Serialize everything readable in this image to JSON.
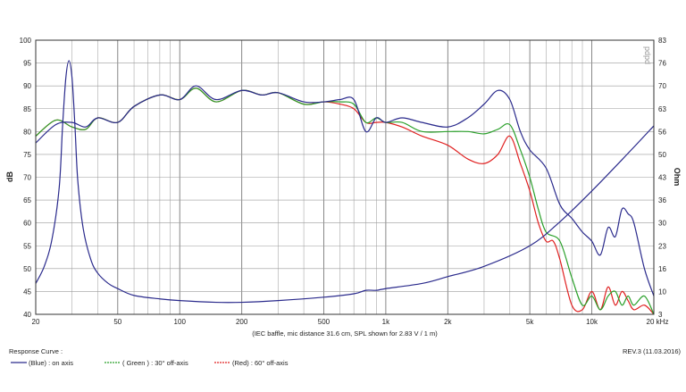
{
  "chart_data": {
    "type": "line",
    "x_scale": "log",
    "xlim": [
      20,
      20000
    ],
    "ylim_left": [
      40,
      100
    ],
    "ylim_right": [
      3,
      83
    ],
    "grid": true,
    "left_axis_label": "dB",
    "right_axis_label": "Ohm",
    "x_ticks": [
      "20",
      "50",
      "100",
      "200",
      "500",
      "1k",
      "2k",
      "5k",
      "10k",
      "20 kHz"
    ],
    "x_tick_values": [
      20,
      50,
      100,
      200,
      500,
      1000,
      2000,
      5000,
      10000,
      20000
    ],
    "y_ticks_left": [
      "40",
      "45",
      "50",
      "55",
      "60",
      "65",
      "70",
      "75",
      "80",
      "85",
      "90",
      "95",
      "100"
    ],
    "y_ticks_right": [
      "3",
      "10",
      "16",
      "23",
      "30",
      "36",
      "43",
      "50",
      "56",
      "63",
      "70",
      "76",
      "83"
    ],
    "caption": "(IEC baffle, mic distance 31.6 cm, SPL shown for 2.83 V / 1 m)",
    "watermark": "pdpd",
    "revision": "REV.3 (11.03.2016)",
    "legend_title": "Response Curve :",
    "legend": [
      {
        "label": "(Blue) : on axis",
        "color": "#2a2a8c"
      },
      {
        "label": "( Green ) : 30° off-axis",
        "color": "#2aa02a"
      },
      {
        "label": "(Red) : 60° off-axis",
        "color": "#e02020"
      }
    ],
    "series": [
      {
        "color": "#2a2a8c",
        "axis": "left",
        "x": [
          20,
          25,
          30,
          35,
          40,
          50,
          60,
          80,
          100,
          120,
          150,
          200,
          250,
          300,
          400,
          500,
          600,
          700,
          800,
          900,
          1000,
          1200,
          1500,
          2000,
          2500,
          3000,
          3500,
          4000,
          4500,
          5000,
          6000,
          7000,
          8000,
          9000,
          10000,
          11000,
          12000,
          13000,
          14000,
          15000,
          16000,
          18000,
          20000
        ],
        "y": [
          77.5,
          81.5,
          82,
          81,
          83,
          82,
          85.5,
          88,
          87,
          90,
          87,
          89,
          88,
          88.5,
          86.5,
          86.5,
          87,
          87,
          80,
          83,
          82,
          83,
          82,
          81,
          83,
          86,
          89,
          87,
          80,
          76,
          72,
          64,
          61,
          58,
          56,
          53,
          59,
          57,
          63,
          62,
          60,
          50,
          44
        ]
      },
      {
        "color": "#2aa02a",
        "axis": "left",
        "x": [
          20,
          25,
          30,
          35,
          40,
          50,
          60,
          80,
          100,
          120,
          150,
          200,
          250,
          300,
          400,
          500,
          600,
          700,
          800,
          900,
          1000,
          1200,
          1500,
          2000,
          2500,
          3000,
          3500,
          4000,
          4500,
          5000,
          5500,
          6000,
          7000,
          8000,
          9000,
          10000,
          11000,
          12000,
          13000,
          14000,
          15000,
          16000,
          18000,
          20000
        ],
        "y": [
          79,
          82.5,
          81,
          80.5,
          83,
          82,
          85.5,
          88,
          87,
          89.5,
          86.5,
          89,
          88,
          88.5,
          86,
          86.5,
          86.5,
          86,
          82,
          83,
          82,
          82,
          80,
          80,
          80,
          79.5,
          80.5,
          81.5,
          76,
          70,
          63,
          58,
          56,
          48,
          42,
          44,
          41,
          44,
          45,
          42,
          44,
          42,
          44,
          40
        ]
      },
      {
        "color": "#e02020",
        "axis": "left",
        "x": [
          20,
          25,
          30,
          35,
          40,
          50,
          60,
          80,
          100,
          120,
          150,
          200,
          250,
          300,
          400,
          500,
          600,
          700,
          800,
          900,
          1000,
          1200,
          1500,
          2000,
          2500,
          3000,
          3500,
          4000,
          4500,
          5000,
          5500,
          6000,
          6500,
          7000,
          8000,
          9000,
          10000,
          11000,
          12000,
          13000,
          14000,
          15000,
          16000,
          18000,
          20000
        ],
        "y": [
          79,
          82.5,
          81,
          80.5,
          83,
          82,
          85.5,
          88,
          87,
          89.5,
          86.5,
          89,
          88,
          88.5,
          86,
          86.5,
          86,
          85,
          82,
          82,
          82,
          81,
          79,
          77,
          74,
          73,
          75,
          79,
          73,
          67,
          60,
          56,
          56,
          52,
          42,
          41,
          45,
          41,
          46,
          42,
          45,
          43,
          41,
          42,
          40
        ]
      },
      {
        "color": "#2a2a8c",
        "axis": "right",
        "x": [
          20,
          22,
          24,
          26,
          27,
          28,
          29,
          30,
          31,
          32,
          34,
          37,
          40,
          45,
          50,
          60,
          80,
          100,
          150,
          200,
          300,
          500,
          700,
          800,
          900,
          1000,
          1500,
          2000,
          3000,
          5000,
          7000,
          10000,
          15000,
          20000
        ],
        "y": [
          12,
          17,
          25,
          40,
          58,
          72,
          77,
          72,
          58,
          42,
          28,
          19,
          15,
          12,
          10.5,
          8.5,
          7.5,
          7,
          6.5,
          6.5,
          7,
          8,
          9,
          10,
          10,
          10.5,
          12,
          14,
          17,
          23,
          30,
          39,
          50,
          58
        ]
      }
    ]
  }
}
